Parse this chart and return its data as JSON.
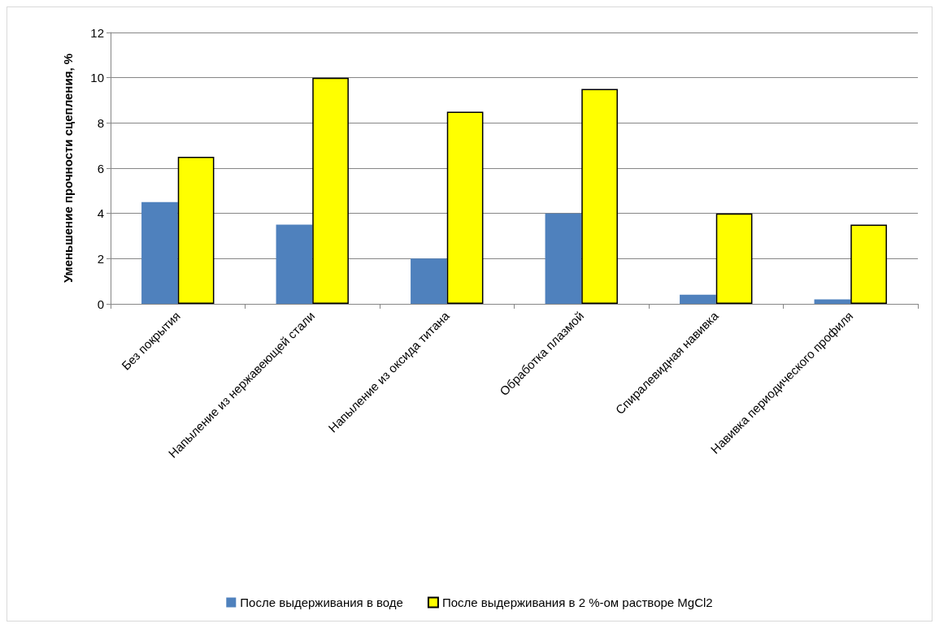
{
  "chart_data": {
    "type": "bar",
    "ylabel": "Уменьшение прочности сцепления, %",
    "categories": [
      "Без покрытия",
      "Напыление из нержавеющей стали",
      "Напыление из оксида титана",
      "Обработка плазмой",
      "Спиралевидная навивка",
      "Навивка периодического профиля"
    ],
    "series": [
      {
        "name": "После выдерживания в воде",
        "color": "#4f81bd",
        "values": [
          4.5,
          3.5,
          2,
          4,
          0.4,
          0.2
        ]
      },
      {
        "name": "После выдерживания в 2 %-ом растворе MgCl2",
        "color": "#ffff00",
        "values": [
          6.5,
          10,
          8.5,
          9.5,
          4,
          3.5
        ]
      }
    ],
    "ylim": [
      0,
      12
    ],
    "yticks": [
      0,
      2,
      4,
      6,
      8,
      10,
      12
    ],
    "grid": "y",
    "legend": "bottom"
  }
}
